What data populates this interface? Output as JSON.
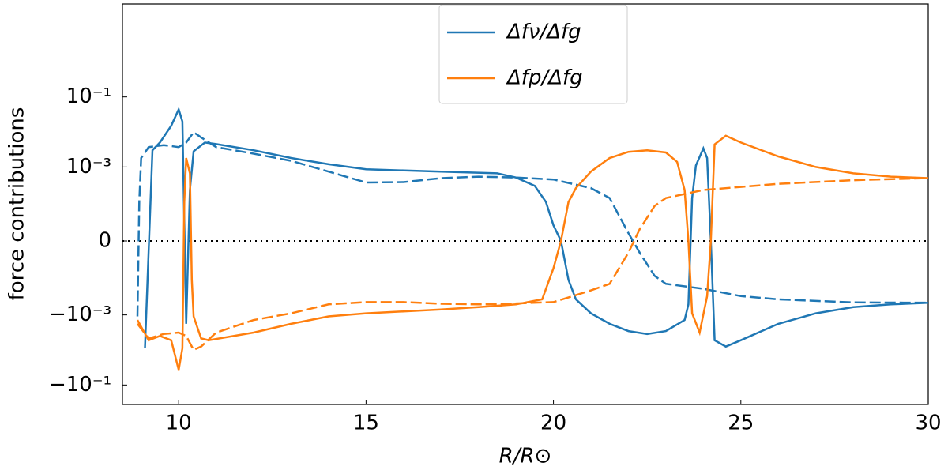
{
  "chart_data": {
    "type": "line",
    "xlabel": "R/R⊙",
    "ylabel": "force contributions",
    "xlim": [
      8.5,
      30
    ],
    "xticks": [
      10,
      15,
      20,
      25,
      30
    ],
    "yscale": "symlog",
    "linthresh": 0.0001,
    "linscale": 1,
    "ylim": [
      -0.36,
      45
    ],
    "yticks": [
      {
        "value": -0.1,
        "label": "−10⁻¹"
      },
      {
        "value": -0.001,
        "label": "−10⁻³"
      },
      0,
      {
        "value": 0.001,
        "label": "10⁻³"
      },
      {
        "value": 0.1,
        "label": "10⁻¹"
      }
    ],
    "zero_line": true,
    "legend": "upper center",
    "series": [
      {
        "name": "Δfν/Δfg",
        "color": "#1f77b4",
        "solid": {
          "x": [
            9.1,
            9.3,
            9.5,
            9.8,
            10.0,
            10.1,
            10.2,
            10.3,
            10.4,
            10.7,
            11,
            12,
            13,
            14,
            15,
            17,
            18.5,
            19,
            19.5,
            19.8,
            20.0,
            20.2,
            20.4,
            20.6,
            21,
            21.5,
            22,
            22.5,
            23,
            23.5,
            23.6,
            23.7,
            23.8,
            24.0,
            24.1,
            24.2,
            24.3,
            24.6,
            25,
            26,
            27,
            28,
            29,
            30
          ],
          "values": [
            -0.009,
            0.003,
            0.005,
            0.015,
            0.044,
            0.02,
            -0.0018,
            0.00022,
            0.0028,
            0.005,
            0.0045,
            0.003,
            0.0018,
            0.0012,
            0.00086,
            0.00074,
            0.00066,
            0.0005,
            0.00029,
            0.0001,
            4e-05,
            0,
            -0.0001,
            -0.00036,
            -0.0009,
            -0.0018,
            -0.0029,
            -0.0035,
            -0.0029,
            -0.0014,
            -0.0005,
            0.00013,
            0.0011,
            0.0034,
            0.0018,
            0,
            -0.0053,
            -0.008,
            -0.0053,
            -0.0018,
            -0.0009,
            -0.0006,
            -0.0005,
            -0.00045
          ]
        },
        "dashed": {
          "x": [
            8.9,
            8.95,
            9.0,
            9.2,
            9.6,
            10.0,
            10.2,
            10.4,
            10.6,
            11,
            12,
            13,
            14,
            15,
            16,
            17,
            18,
            19,
            20,
            21,
            21.5,
            22,
            22.3,
            22.7,
            23,
            24,
            25,
            26,
            28,
            30
          ],
          "values": [
            -0.0011,
            0.0001,
            0.0018,
            0.0037,
            0.0042,
            0.0037,
            0.005,
            0.0098,
            0.007,
            0.0037,
            0.0024,
            0.0015,
            0.00074,
            0.00036,
            0.00037,
            0.00048,
            0.00053,
            0.0005,
            0.00044,
            0.00025,
            0.00013,
            2e-05,
            -3e-05,
            -9e-05,
            -0.00013,
            -0.00018,
            -0.00029,
            -0.00036,
            -0.00044,
            -0.00045
          ]
        }
      },
      {
        "name": "Δfp/Δfg",
        "color": "#ff7f0e",
        "solid": {
          "x": [
            8.9,
            9.2,
            9.5,
            9.8,
            10.0,
            10.1,
            10.15,
            10.2,
            10.3,
            10.35,
            10.4,
            10.6,
            10.8,
            12,
            13,
            14,
            15,
            17,
            18,
            19,
            19.7,
            20.0,
            20.2,
            20.4,
            20.6,
            21,
            21.5,
            22,
            22.5,
            23,
            23.3,
            23.5,
            23.6,
            23.7,
            23.9,
            24.1,
            24.2,
            24.3,
            24.6,
            25,
            26,
            27,
            28,
            29,
            30
          ],
          "values": [
            -0.0014,
            -0.0053,
            -0.004,
            -0.0053,
            -0.037,
            -0.009,
            0.0001,
            0.0018,
            0.00066,
            -0.0001,
            -0.0011,
            -0.0047,
            -0.0053,
            -0.0032,
            -0.0018,
            -0.0011,
            -0.0009,
            -0.0007,
            -0.0006,
            -0.0005,
            -0.00036,
            -7e-05,
            0,
            0.0001,
            0.00025,
            0.00074,
            0.0018,
            0.0027,
            0.003,
            0.0026,
            0.0014,
            0.00022,
            0,
            -0.0009,
            -0.0032,
            -0.00029,
            0,
            0.0044,
            0.0078,
            0.005,
            0.002,
            0.001,
            0.00066,
            0.00053,
            0.00048
          ]
        },
        "dashed": {
          "x": [
            8.9,
            9.2,
            9.6,
            10.0,
            10.2,
            10.4,
            10.6,
            11,
            12,
            13,
            14,
            15,
            16,
            17,
            18,
            19,
            20,
            21,
            21.5,
            22,
            22.3,
            22.7,
            23,
            24,
            25,
            26,
            28,
            30
          ],
          "values": [
            -0.0018,
            -0.0047,
            -0.0035,
            -0.0032,
            -0.004,
            -0.01,
            -0.008,
            -0.0032,
            -0.0014,
            -0.0009,
            -0.0005,
            -0.00043,
            -0.00043,
            -0.00048,
            -0.0005,
            -0.00047,
            -0.00043,
            -0.0002,
            -0.00013,
            -3e-05,
            3e-05,
            9e-05,
            0.00013,
            0.00022,
            0.00027,
            0.00033,
            0.00042,
            0.00048
          ]
        }
      }
    ]
  }
}
